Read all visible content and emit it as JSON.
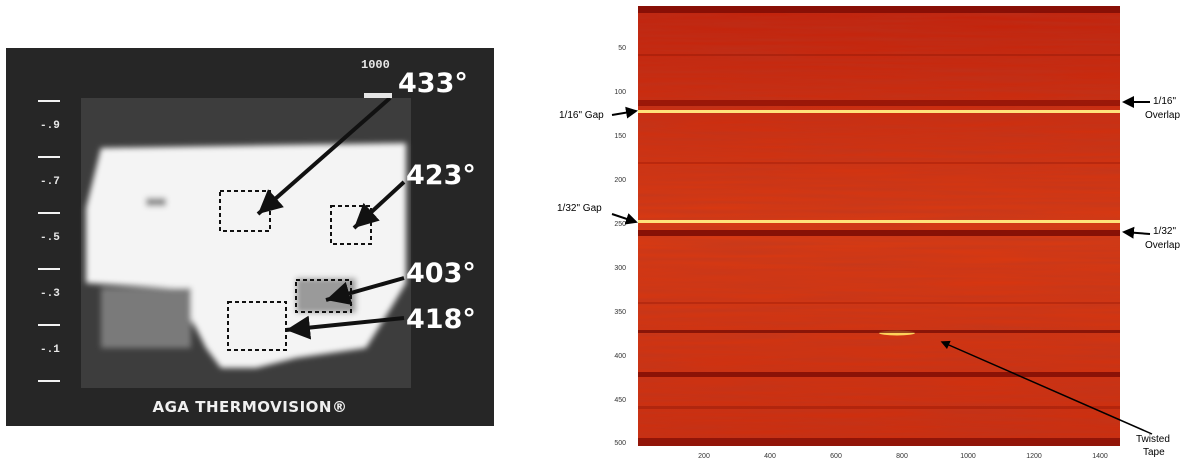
{
  "thermovision": {
    "scale_max": "1000",
    "scale_labels": [
      "-.9",
      "-.7",
      "-.5",
      "-.3",
      "-.1"
    ],
    "temperatures": [
      "433°",
      "423°",
      "403°",
      "418°"
    ],
    "brand_text": "AGA THERMOVISION®"
  },
  "heatmap": {
    "y_ticks": [
      "50",
      "100",
      "150",
      "200",
      "250",
      "300",
      "350",
      "400",
      "450",
      "500"
    ],
    "x_ticks": [
      "200",
      "400",
      "600",
      "800",
      "1000",
      "1200",
      "1400"
    ],
    "annotations": {
      "gap_16": "1/16\" Gap",
      "gap_32": "1/32\" Gap",
      "overlap_16_line1": "1/16\"",
      "overlap_16_line2": "Overlap",
      "overlap_32_line1": "1/32\"",
      "overlap_32_line2": "Overlap",
      "twisted_line1": "Twisted",
      "twisted_line2": "Tape"
    },
    "colors": {
      "background": "#d42a0c",
      "dark_band": "#7a0a04",
      "bright_line": "#fff2a8"
    }
  }
}
